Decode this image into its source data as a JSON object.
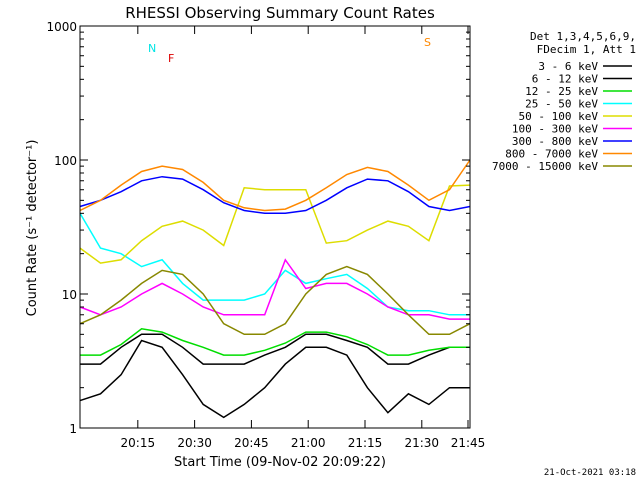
{
  "chart_data": {
    "type": "line",
    "title": "RHESSI Observing Summary Count Rates",
    "xlabel": "Start Time (09-Nov-02 20:09:22)",
    "ylabel": "Count Rate (s⁻¹ detector⁻¹)",
    "y_scale": "log",
    "ylim": [
      1,
      1000
    ],
    "xlim_minutes": [
      0,
      38
    ],
    "x_start": "20:09:22",
    "y_ticks": [
      "1",
      "10",
      "100",
      "1000"
    ],
    "x_ticks": [
      "20:15",
      "20:30",
      "20:45",
      "21:00",
      "21:15",
      "21:30",
      "21:45"
    ],
    "timestamp": "21-Oct-2021 03:18",
    "legend": {
      "header": [
        "Det 1,3,4,5,6,9,",
        "FDecim 1, Att 1"
      ],
      "placement": "right"
    },
    "flags": [
      {
        "label": "N",
        "color": "#00e5e5"
      },
      {
        "label": "F",
        "color": "#dd0000"
      },
      {
        "label": "S",
        "color": "#ff8800"
      }
    ],
    "series": [
      {
        "name": "3 - 6 keV",
        "color": "#000000",
        "x": [
          0,
          2,
          4,
          6,
          8,
          10,
          12,
          14,
          16,
          18,
          20,
          22,
          24,
          26,
          28,
          30,
          32,
          34,
          36,
          38
        ],
        "values": [
          1.6,
          1.8,
          2.5,
          4.5,
          4.0,
          2.5,
          1.5,
          1.2,
          1.5,
          2.0,
          3.0,
          4.0,
          4.0,
          3.5,
          2.0,
          1.3,
          1.8,
          1.5,
          2.0,
          2.0
        ]
      },
      {
        "name": "6 - 12 keV",
        "color": "#000000",
        "x": [
          0,
          2,
          4,
          6,
          8,
          10,
          12,
          14,
          16,
          18,
          20,
          22,
          24,
          26,
          28,
          30,
          32,
          34,
          36,
          38
        ],
        "values": [
          3,
          3,
          4,
          5,
          5,
          4,
          3,
          3,
          3,
          3.5,
          4,
          5,
          5,
          4.5,
          4,
          3,
          3,
          3.5,
          4,
          4
        ]
      },
      {
        "name": "12 - 25 keV",
        "color": "#00dd00",
        "x": [
          0,
          2,
          4,
          6,
          8,
          10,
          12,
          14,
          16,
          18,
          20,
          22,
          24,
          26,
          28,
          30,
          32,
          34,
          36,
          38
        ],
        "values": [
          3.5,
          3.5,
          4.2,
          5.5,
          5.2,
          4.5,
          4,
          3.5,
          3.5,
          3.8,
          4.3,
          5.2,
          5.2,
          4.8,
          4.2,
          3.5,
          3.5,
          3.8,
          4.0,
          4.0
        ]
      },
      {
        "name": "25 - 50 keV",
        "color": "#00ffff",
        "x": [
          0,
          2,
          4,
          6,
          8,
          10,
          12,
          14,
          16,
          18,
          20,
          22,
          24,
          26,
          28,
          30,
          32,
          34,
          36,
          38
        ],
        "values": [
          40,
          22,
          20,
          16,
          18,
          12,
          9,
          9,
          9,
          10,
          15,
          12,
          13,
          14,
          11,
          8,
          7.5,
          7.5,
          7,
          7
        ]
      },
      {
        "name": "50 - 100 keV",
        "color": "#dddd00",
        "x": [
          0,
          2,
          4,
          6,
          8,
          10,
          12,
          14,
          16,
          18,
          20,
          22,
          24,
          26,
          28,
          30,
          32,
          34,
          36,
          38
        ],
        "values": [
          22,
          17,
          18,
          25,
          32,
          35,
          30,
          23,
          62,
          60,
          60,
          60,
          24,
          25,
          30,
          35,
          32,
          25,
          64,
          65
        ]
      },
      {
        "name": "100 - 300 keV",
        "color": "#ff00ff",
        "x": [
          0,
          2,
          4,
          6,
          8,
          10,
          12,
          14,
          16,
          18,
          20,
          22,
          24,
          26,
          28,
          30,
          32,
          34,
          36,
          38
        ],
        "values": [
          8,
          7,
          8,
          10,
          12,
          10,
          8,
          7,
          7,
          7,
          18,
          11,
          12,
          12,
          10,
          8,
          7,
          7,
          6.5,
          6.5
        ]
      },
      {
        "name": "300 - 800 keV",
        "color": "#0000ff",
        "x": [
          0,
          2,
          4,
          6,
          8,
          10,
          12,
          14,
          16,
          18,
          20,
          22,
          24,
          26,
          28,
          30,
          32,
          34,
          36,
          38
        ],
        "values": [
          45,
          50,
          58,
          70,
          75,
          72,
          60,
          48,
          42,
          40,
          40,
          42,
          50,
          62,
          72,
          70,
          58,
          45,
          42,
          45
        ]
      },
      {
        "name": "800 - 7000 keV",
        "color": "#ff8800",
        "x": [
          0,
          2,
          4,
          6,
          8,
          10,
          12,
          14,
          16,
          18,
          20,
          22,
          24,
          26,
          28,
          30,
          32,
          34,
          36,
          38
        ],
        "values": [
          42,
          50,
          65,
          82,
          90,
          85,
          68,
          50,
          44,
          42,
          43,
          50,
          62,
          78,
          88,
          82,
          65,
          50,
          60,
          100
        ]
      },
      {
        "name": "7000 - 15000 keV",
        "color": "#888800",
        "x": [
          0,
          2,
          4,
          6,
          8,
          10,
          12,
          14,
          16,
          18,
          20,
          22,
          24,
          26,
          28,
          30,
          32,
          34,
          36,
          38
        ],
        "values": [
          6,
          7,
          9,
          12,
          15,
          14,
          10,
          6,
          5,
          5,
          6,
          10,
          14,
          16,
          14,
          10,
          7,
          5,
          5,
          6
        ]
      }
    ],
    "grid": false
  }
}
